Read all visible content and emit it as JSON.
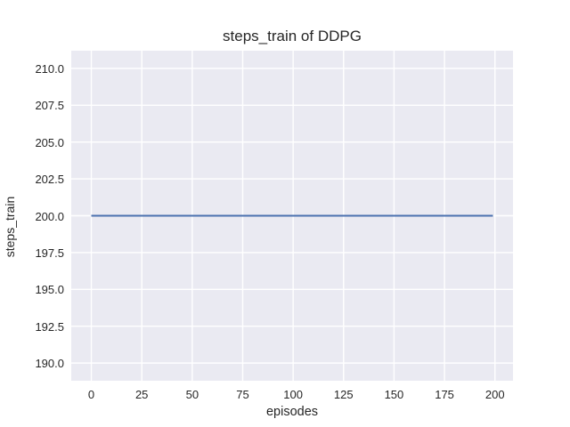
{
  "chart_data": {
    "type": "line",
    "title": "steps_train of DDPG",
    "xlabel": "episodes",
    "ylabel": "steps_train",
    "x_ticks": [
      0,
      25,
      50,
      75,
      100,
      125,
      150,
      175,
      200
    ],
    "x_tick_labels": [
      "0",
      "25",
      "50",
      "75",
      "100",
      "125",
      "150",
      "175",
      "200"
    ],
    "y_ticks": [
      190.0,
      192.5,
      195.0,
      197.5,
      200.0,
      202.5,
      205.0,
      207.5,
      210.0
    ],
    "y_tick_labels": [
      "190.0",
      "192.5",
      "195.0",
      "197.5",
      "200.0",
      "202.5",
      "205.0",
      "207.5",
      "210.0"
    ],
    "xlim": [
      -9.95,
      208.95
    ],
    "ylim": [
      188.8,
      211.2
    ],
    "grid": true,
    "legend": "none",
    "series": [
      {
        "name": "steps_train",
        "color": "#4C72B0",
        "x": [
          0,
          199
        ],
        "y": [
          200,
          200
        ],
        "note": "constant value 200 for every episode 0-199"
      }
    ],
    "colors": {
      "figure_bg": "#FFFFFF",
      "plot_bg": "#EAEAF2",
      "grid": "#FFFFFF",
      "text": "#262626",
      "line": "#4C72B0"
    }
  }
}
